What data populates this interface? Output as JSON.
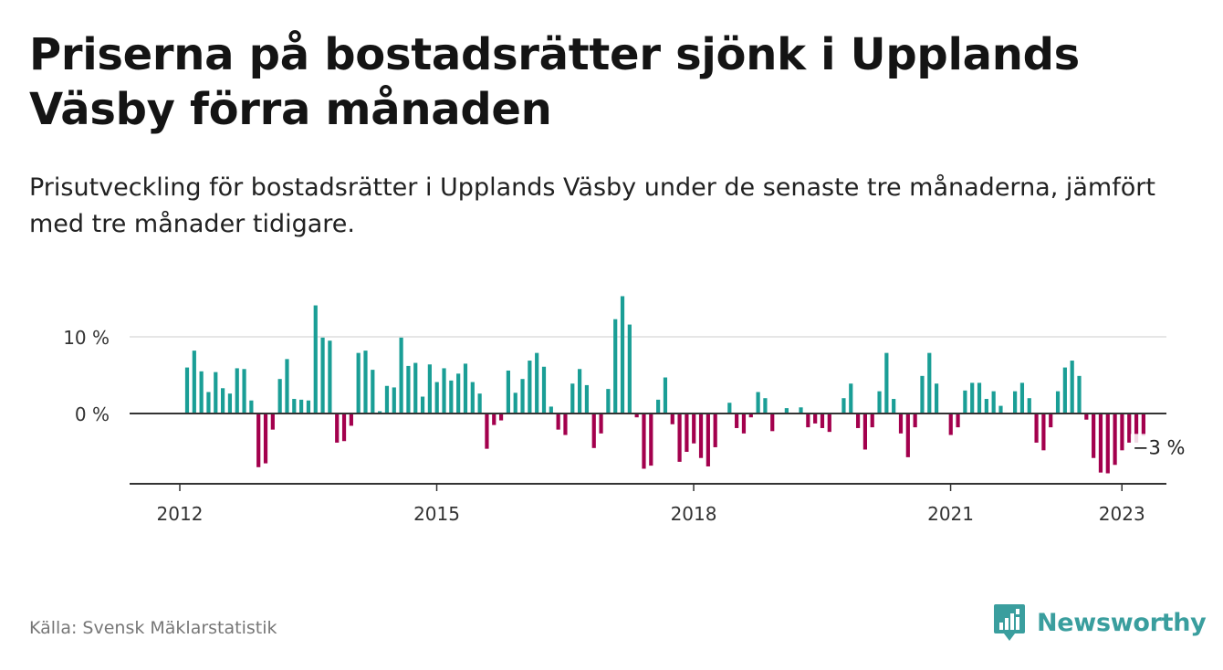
{
  "title": "Priserna på bostadsrätter sjönk i Upplands Väsby förra månaden",
  "subtitle": "Prisutveckling för bostadsrätter i Upplands Väsby under de senaste tre månaderna, jämfört med tre månader tidigare.",
  "source": "Källa: Svensk Mäklarstatistik",
  "brand": "Newsworthy",
  "colors": {
    "positive": "#1a9e96",
    "negative": "#a3004d",
    "brand": "#3a9e9e"
  },
  "chart_data": {
    "type": "bar",
    "title": "Priserna på bostadsrätter sjönk i Upplands Väsby förra månaden",
    "subtitle": "Prisutveckling för bostadsrätter i Upplands Väsby under de senaste tre månaderna, jämfört med tre månader tidigare.",
    "xlabel": "",
    "ylabel": "",
    "x_start": "2012-01",
    "x_end": "2023-01",
    "x_ticks": [
      "2012",
      "2015",
      "2018",
      "2021",
      "2023"
    ],
    "y_ticks": [
      "0 %",
      "10 %"
    ],
    "ylim": [
      -9.5,
      17
    ],
    "grid": true,
    "annotation": "−3 %",
    "series": [
      {
        "values": [
          6,
          8.2,
          5.5,
          2.8,
          5.4,
          3.3,
          2.6,
          5.9,
          5.8,
          1.7,
          -7,
          -6.5,
          -2.1,
          4.5,
          7.1,
          1.9,
          1.8,
          1.7,
          14.1,
          9.9,
          9.5,
          -3.8,
          -3.6,
          -1.6,
          7.9,
          8.2,
          5.7,
          0.3,
          3.6,
          3.4,
          9.9,
          6.2,
          6.6,
          2.2,
          6.4,
          4.1,
          5.9,
          4.3,
          5.2,
          6.5,
          4.1,
          2.6,
          -4.6,
          -1.5,
          -0.9,
          5.6,
          2.7,
          4.5,
          6.9,
          7.9,
          6.1,
          0.9,
          -2.1,
          -2.8,
          3.9,
          5.8,
          3.7,
          -4.5,
          -2.6,
          3.2,
          12.3,
          15.3,
          11.6,
          -0.5,
          -7.2,
          -6.8,
          1.8,
          4.7,
          -1.4,
          -6.3,
          -5,
          -3.9,
          -5.8,
          -6.9,
          -4.4,
          0,
          1.4,
          -1.9,
          -2.6,
          -0.5,
          2.8,
          2,
          -2.3,
          0,
          0.7,
          0,
          0.8,
          -1.8,
          -1.3,
          -1.9,
          -2.4,
          0,
          2,
          3.9,
          -1.9,
          -4.7,
          -1.8,
          2.9,
          7.9,
          1.9,
          -2.6,
          -5.7,
          -1.8,
          4.9,
          7.9,
          3.9,
          0,
          -2.8,
          -1.8,
          3,
          4,
          4,
          1.9,
          2.9,
          1,
          0,
          2.9,
          4,
          2,
          -3.8,
          -4.8,
          -1.8,
          2.9,
          6,
          6.9,
          4.9,
          -0.8,
          -5.8,
          -7.7,
          -7.8,
          -6.7,
          -4.8,
          -3.8,
          -3.8,
          -2.9
        ]
      }
    ]
  }
}
